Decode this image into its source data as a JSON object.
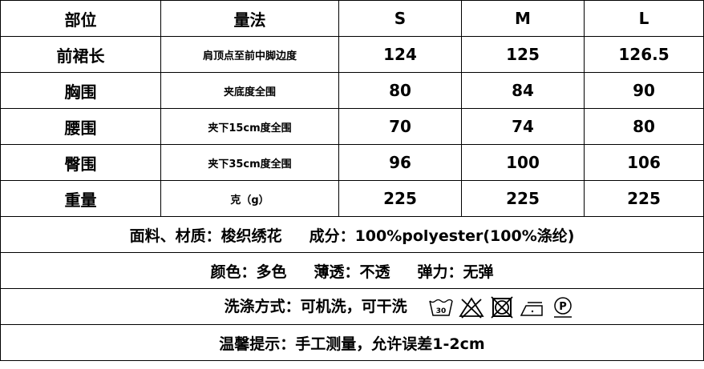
{
  "header": {
    "part": "部位",
    "method": "量法",
    "sizes": [
      "S",
      "M",
      "L"
    ]
  },
  "rows": [
    {
      "part": "前裙长",
      "method": "肩顶点至前中脚边度",
      "values": [
        "124",
        "125",
        "126.5"
      ]
    },
    {
      "part": "胸围",
      "method": "夹底度全围",
      "values": [
        "80",
        "84",
        "90"
      ]
    },
    {
      "part": "腰围",
      "method": "夹下15cm度全围",
      "values": [
        "70",
        "74",
        "80"
      ]
    },
    {
      "part": "臀围",
      "method": "夹下35cm度全围",
      "values": [
        "96",
        "100",
        "106"
      ]
    },
    {
      "part": "重量",
      "method": "克（g）",
      "values": [
        "225",
        "225",
        "225"
      ]
    }
  ],
  "info": {
    "material": "面料、材质：梭织绣花",
    "composition": "成分：100%polyester(100%涤纶)",
    "color": "颜色：多色",
    "transparency": "薄透：不透",
    "elasticity": "弹力：无弹",
    "washing": "洗涤方式：可机洗，可干洗",
    "wash_temp": "30",
    "care_icons": [
      "wash-30-icon",
      "no-bleach-icon",
      "no-tumble-dry-icon",
      "iron-low-icon",
      "dry-clean-p-icon"
    ],
    "note": "温馨提示：手工测量，允许误差1-2cm"
  }
}
